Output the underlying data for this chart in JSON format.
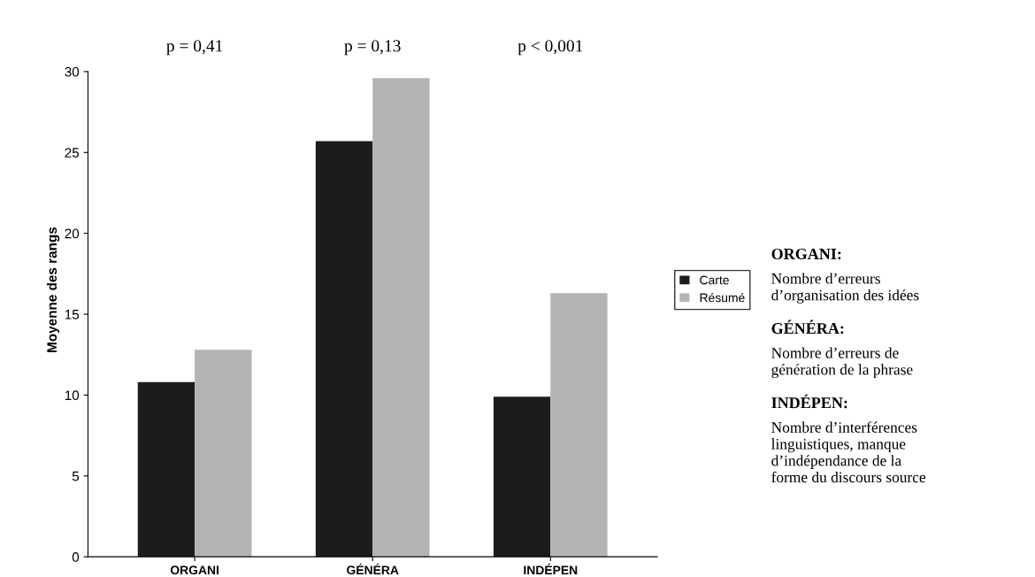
{
  "chart_data": {
    "type": "bar",
    "ylabel": "Moyenne des rangs",
    "categories": [
      "ORGANI",
      "GÉNÉRA",
      "INDÉPEN"
    ],
    "series": [
      {
        "name": "Carte",
        "color": "#1c1c1c",
        "values": [
          10.8,
          25.7,
          9.9
        ]
      },
      {
        "name": "Résumé",
        "color": "#b4b4b4",
        "values": [
          12.8,
          29.6,
          16.3
        ]
      }
    ],
    "ylim": [
      0,
      30
    ],
    "yticks": [
      0,
      5,
      10,
      15,
      20,
      25,
      30
    ],
    "grid": false,
    "legend": "right",
    "annotations": [
      "p = 0,41",
      "p = 0,13",
      "p < 0,001",
      "ORGANI:",
      "Nombre d’erreurs\nd’organisation des idées",
      "GÉNÉRA:",
      "Nombre d’erreurs de\ngénération de la phrase",
      "INDÉPEN:",
      "Nombre d’interférences\nlinguistiques, manque\nd’indépendance de la\nforme du discours source"
    ]
  }
}
